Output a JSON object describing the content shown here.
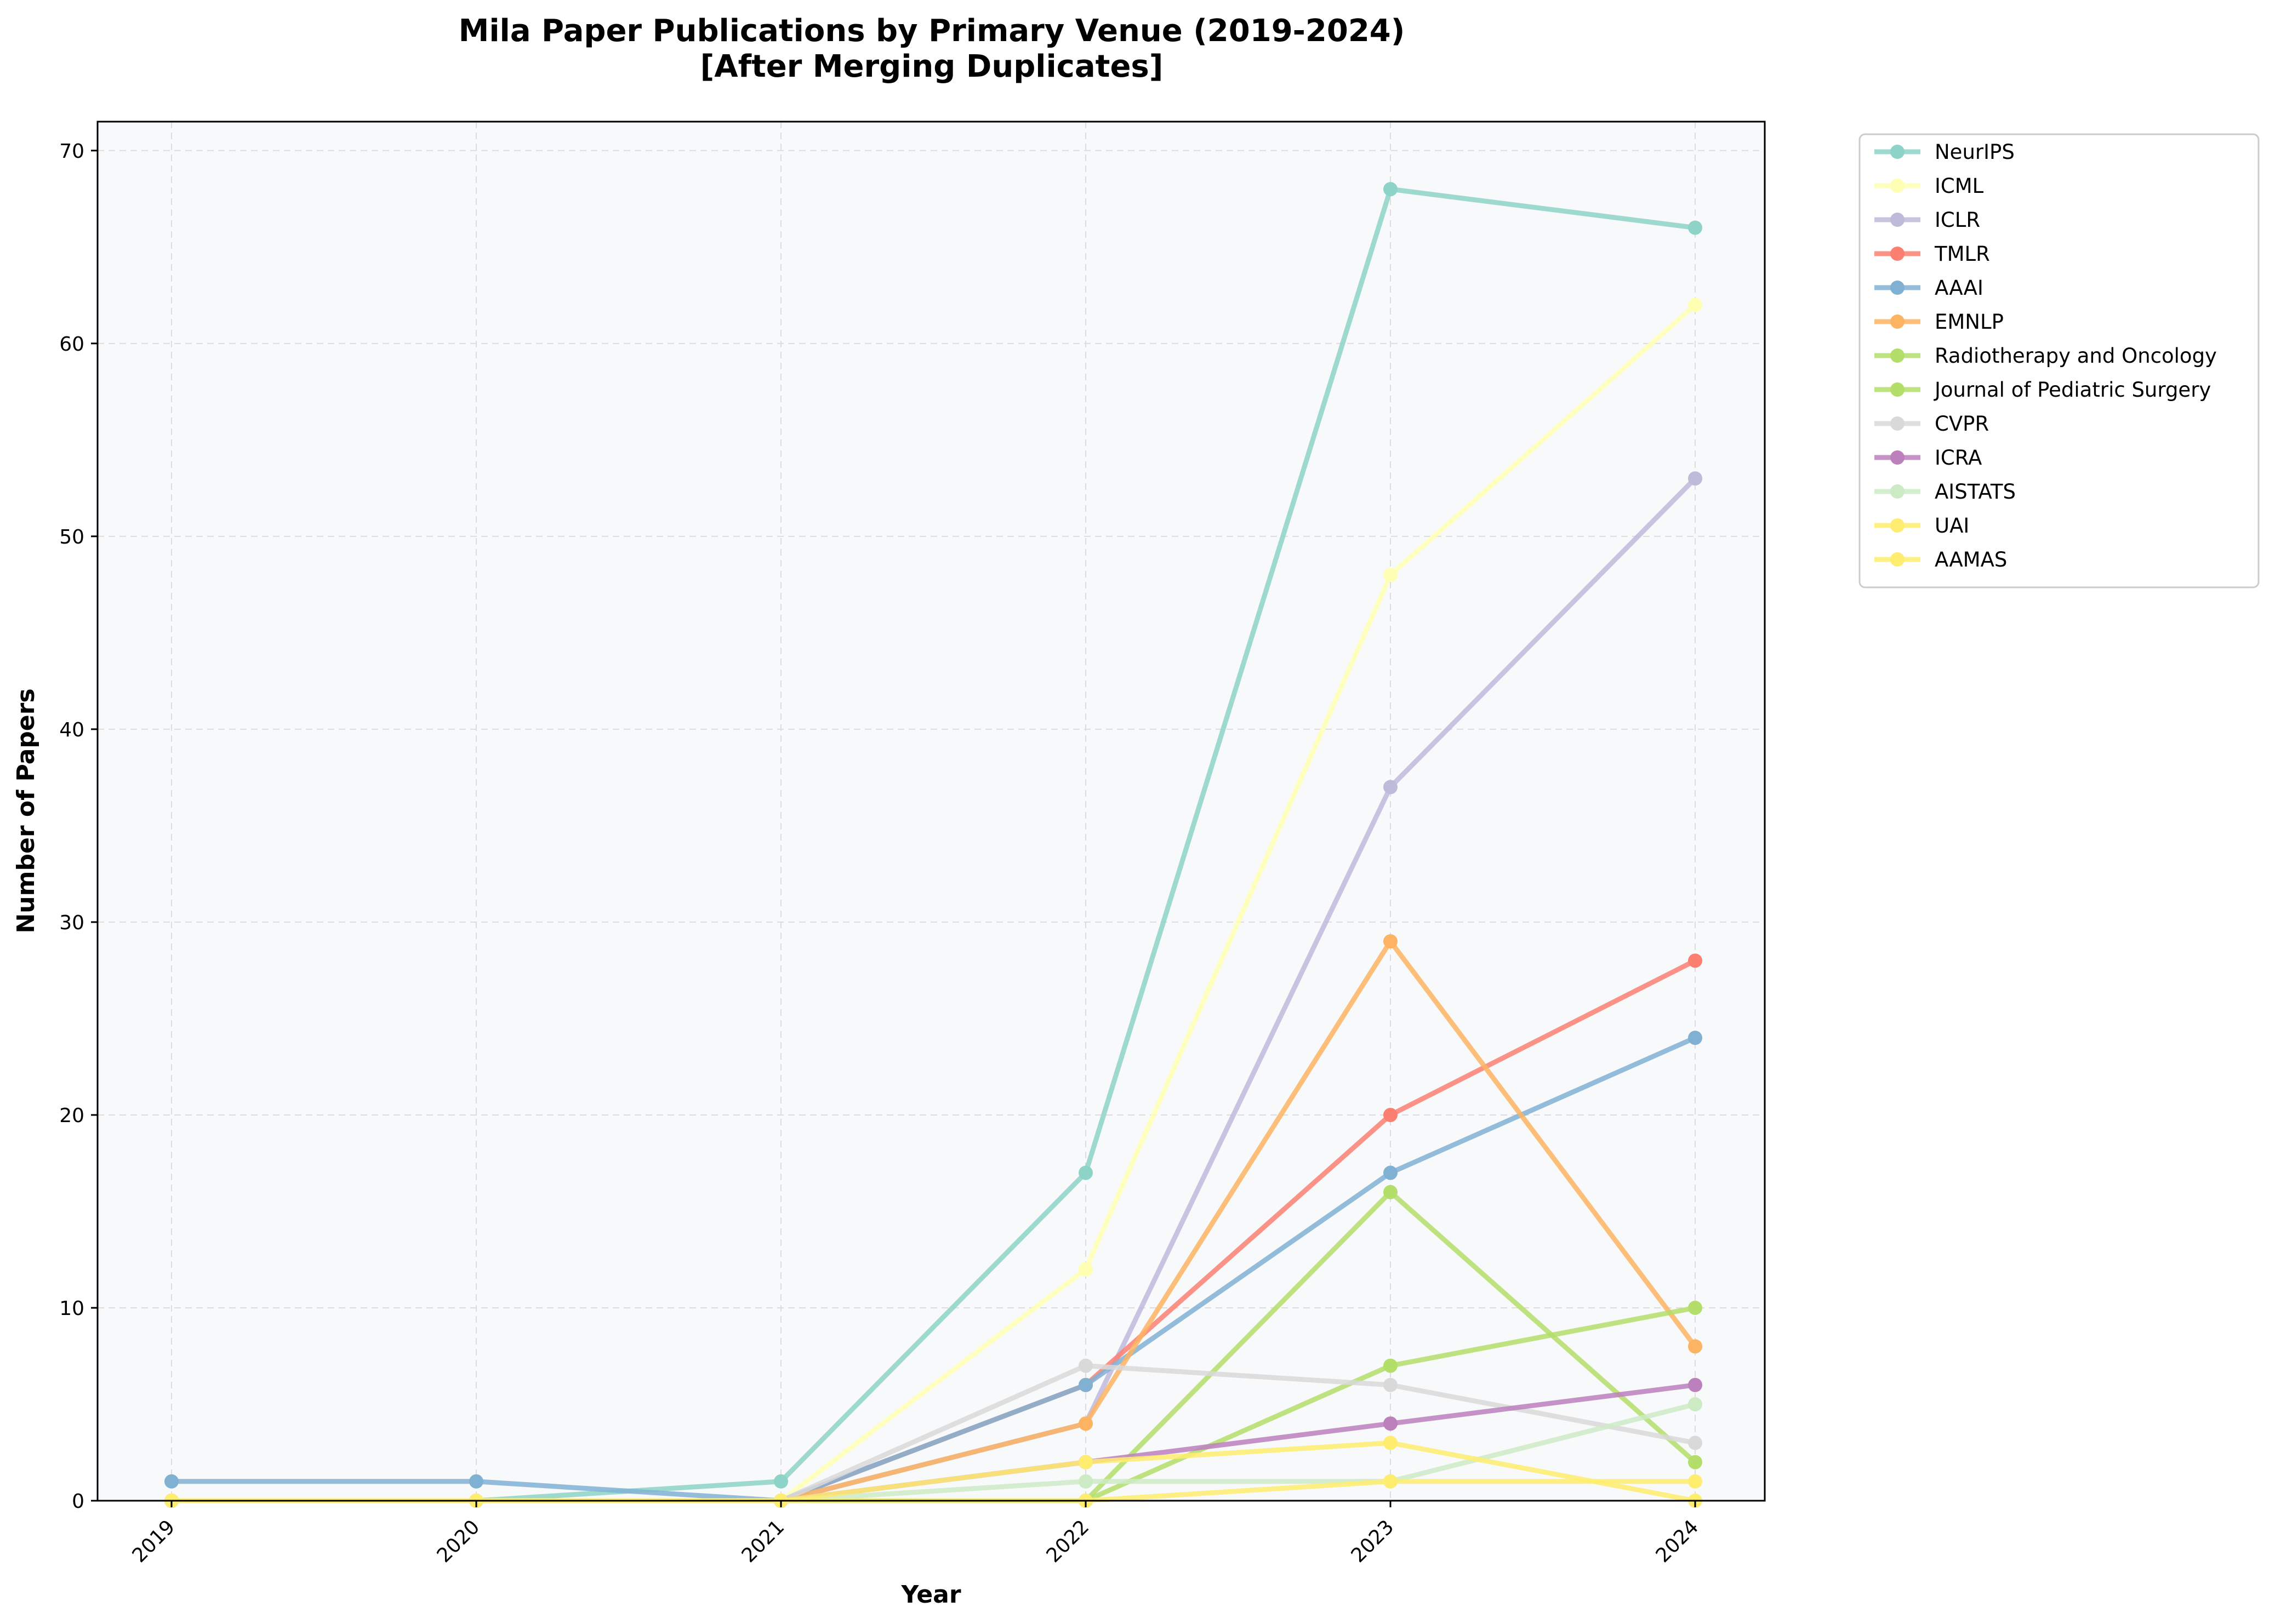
{
  "chart_data": {
    "type": "line",
    "title": "Mila Paper Publications by Primary Venue (2019-2024)",
    "subtitle": "[After Merging Duplicates]",
    "xlabel": "Year",
    "ylabel": "Number of Papers",
    "x": [
      "2019",
      "2020",
      "2021",
      "2022",
      "2023",
      "2024"
    ],
    "y_ticks": [
      "0",
      "10",
      "20",
      "30",
      "40",
      "50",
      "60",
      "70"
    ],
    "ylim": [
      0,
      71.5
    ],
    "grid": true,
    "legend_position": "outside-right",
    "series": [
      {
        "name": "NeurIPS",
        "color": "#8dd3c7",
        "values": [
          0,
          0,
          1,
          17,
          68,
          66
        ]
      },
      {
        "name": "ICML",
        "color": "#ffffb3",
        "values": [
          0,
          0,
          0,
          12,
          48,
          62
        ]
      },
      {
        "name": "ICLR",
        "color": "#bebada",
        "values": [
          0,
          0,
          0,
          4,
          37,
          53
        ]
      },
      {
        "name": "TMLR",
        "color": "#fb8072",
        "values": [
          0,
          0,
          0,
          6,
          20,
          28
        ]
      },
      {
        "name": "AAAI",
        "color": "#80b1d3",
        "values": [
          1,
          1,
          0,
          6,
          17,
          24
        ]
      },
      {
        "name": "EMNLP",
        "color": "#fdb462",
        "values": [
          0,
          0,
          0,
          4,
          29,
          8
        ]
      },
      {
        "name": "Radiotherapy and Oncology",
        "color": "#b3de69",
        "values": [
          0,
          0,
          0,
          0,
          16,
          2
        ]
      },
      {
        "name": "Journal of Pediatric Surgery",
        "color": "#b3de69",
        "values": [
          0,
          0,
          0,
          0,
          7,
          10
        ]
      },
      {
        "name": "CVPR",
        "color": "#d9d9d9",
        "values": [
          0,
          0,
          0,
          7,
          6,
          3
        ]
      },
      {
        "name": "ICRA",
        "color": "#bc80bd",
        "values": [
          0,
          0,
          0,
          2,
          4,
          6
        ]
      },
      {
        "name": "AISTATS",
        "color": "#ccebc5",
        "values": [
          0,
          0,
          0,
          1,
          1,
          5
        ]
      },
      {
        "name": "UAI",
        "color": "#ffed6f",
        "values": [
          0,
          0,
          0,
          0,
          1,
          1
        ]
      },
      {
        "name": "AAMAS",
        "color": "#ffed6f",
        "values": [
          0,
          0,
          0,
          2,
          3,
          0
        ]
      }
    ]
  }
}
